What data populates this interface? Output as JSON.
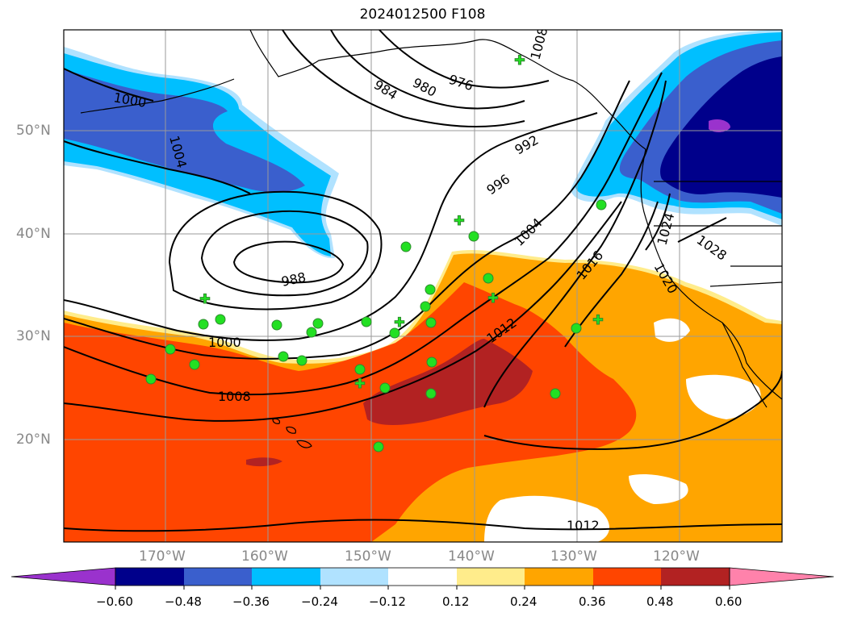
{
  "title": "2024012500 F108",
  "lat_labels": [
    "50°N",
    "40°N",
    "30°N",
    "20°N"
  ],
  "lon_labels": [
    "170°W",
    "160°W",
    "150°W",
    "140°W",
    "130°W",
    "120°W"
  ],
  "colorbar": {
    "ticks": [
      "−0.60",
      "−0.48",
      "−0.36",
      "−0.24",
      "−0.12",
      "0.12",
      "0.24",
      "0.36",
      "0.48",
      "0.60"
    ],
    "colors": [
      "#9a32cd",
      "#00008b",
      "#3a5fcd",
      "#00bfff",
      "#b0e2ff",
      "#ffffff",
      "#ffec8b",
      "#ffa500",
      "#ff4500",
      "#b22222",
      "#ff82ab"
    ]
  },
  "contour_labels": [
    "1000",
    "1004",
    "984",
    "980",
    "976",
    "992",
    "996",
    "1004",
    "988",
    "1000",
    "1008",
    "1012",
    "1016",
    "1020",
    "1024",
    "1028",
    "1012",
    "1008"
  ],
  "colors": {
    "contour": "#000000",
    "station": "#22e022",
    "grid": "#9a9a9a",
    "coast": "#000000"
  }
}
